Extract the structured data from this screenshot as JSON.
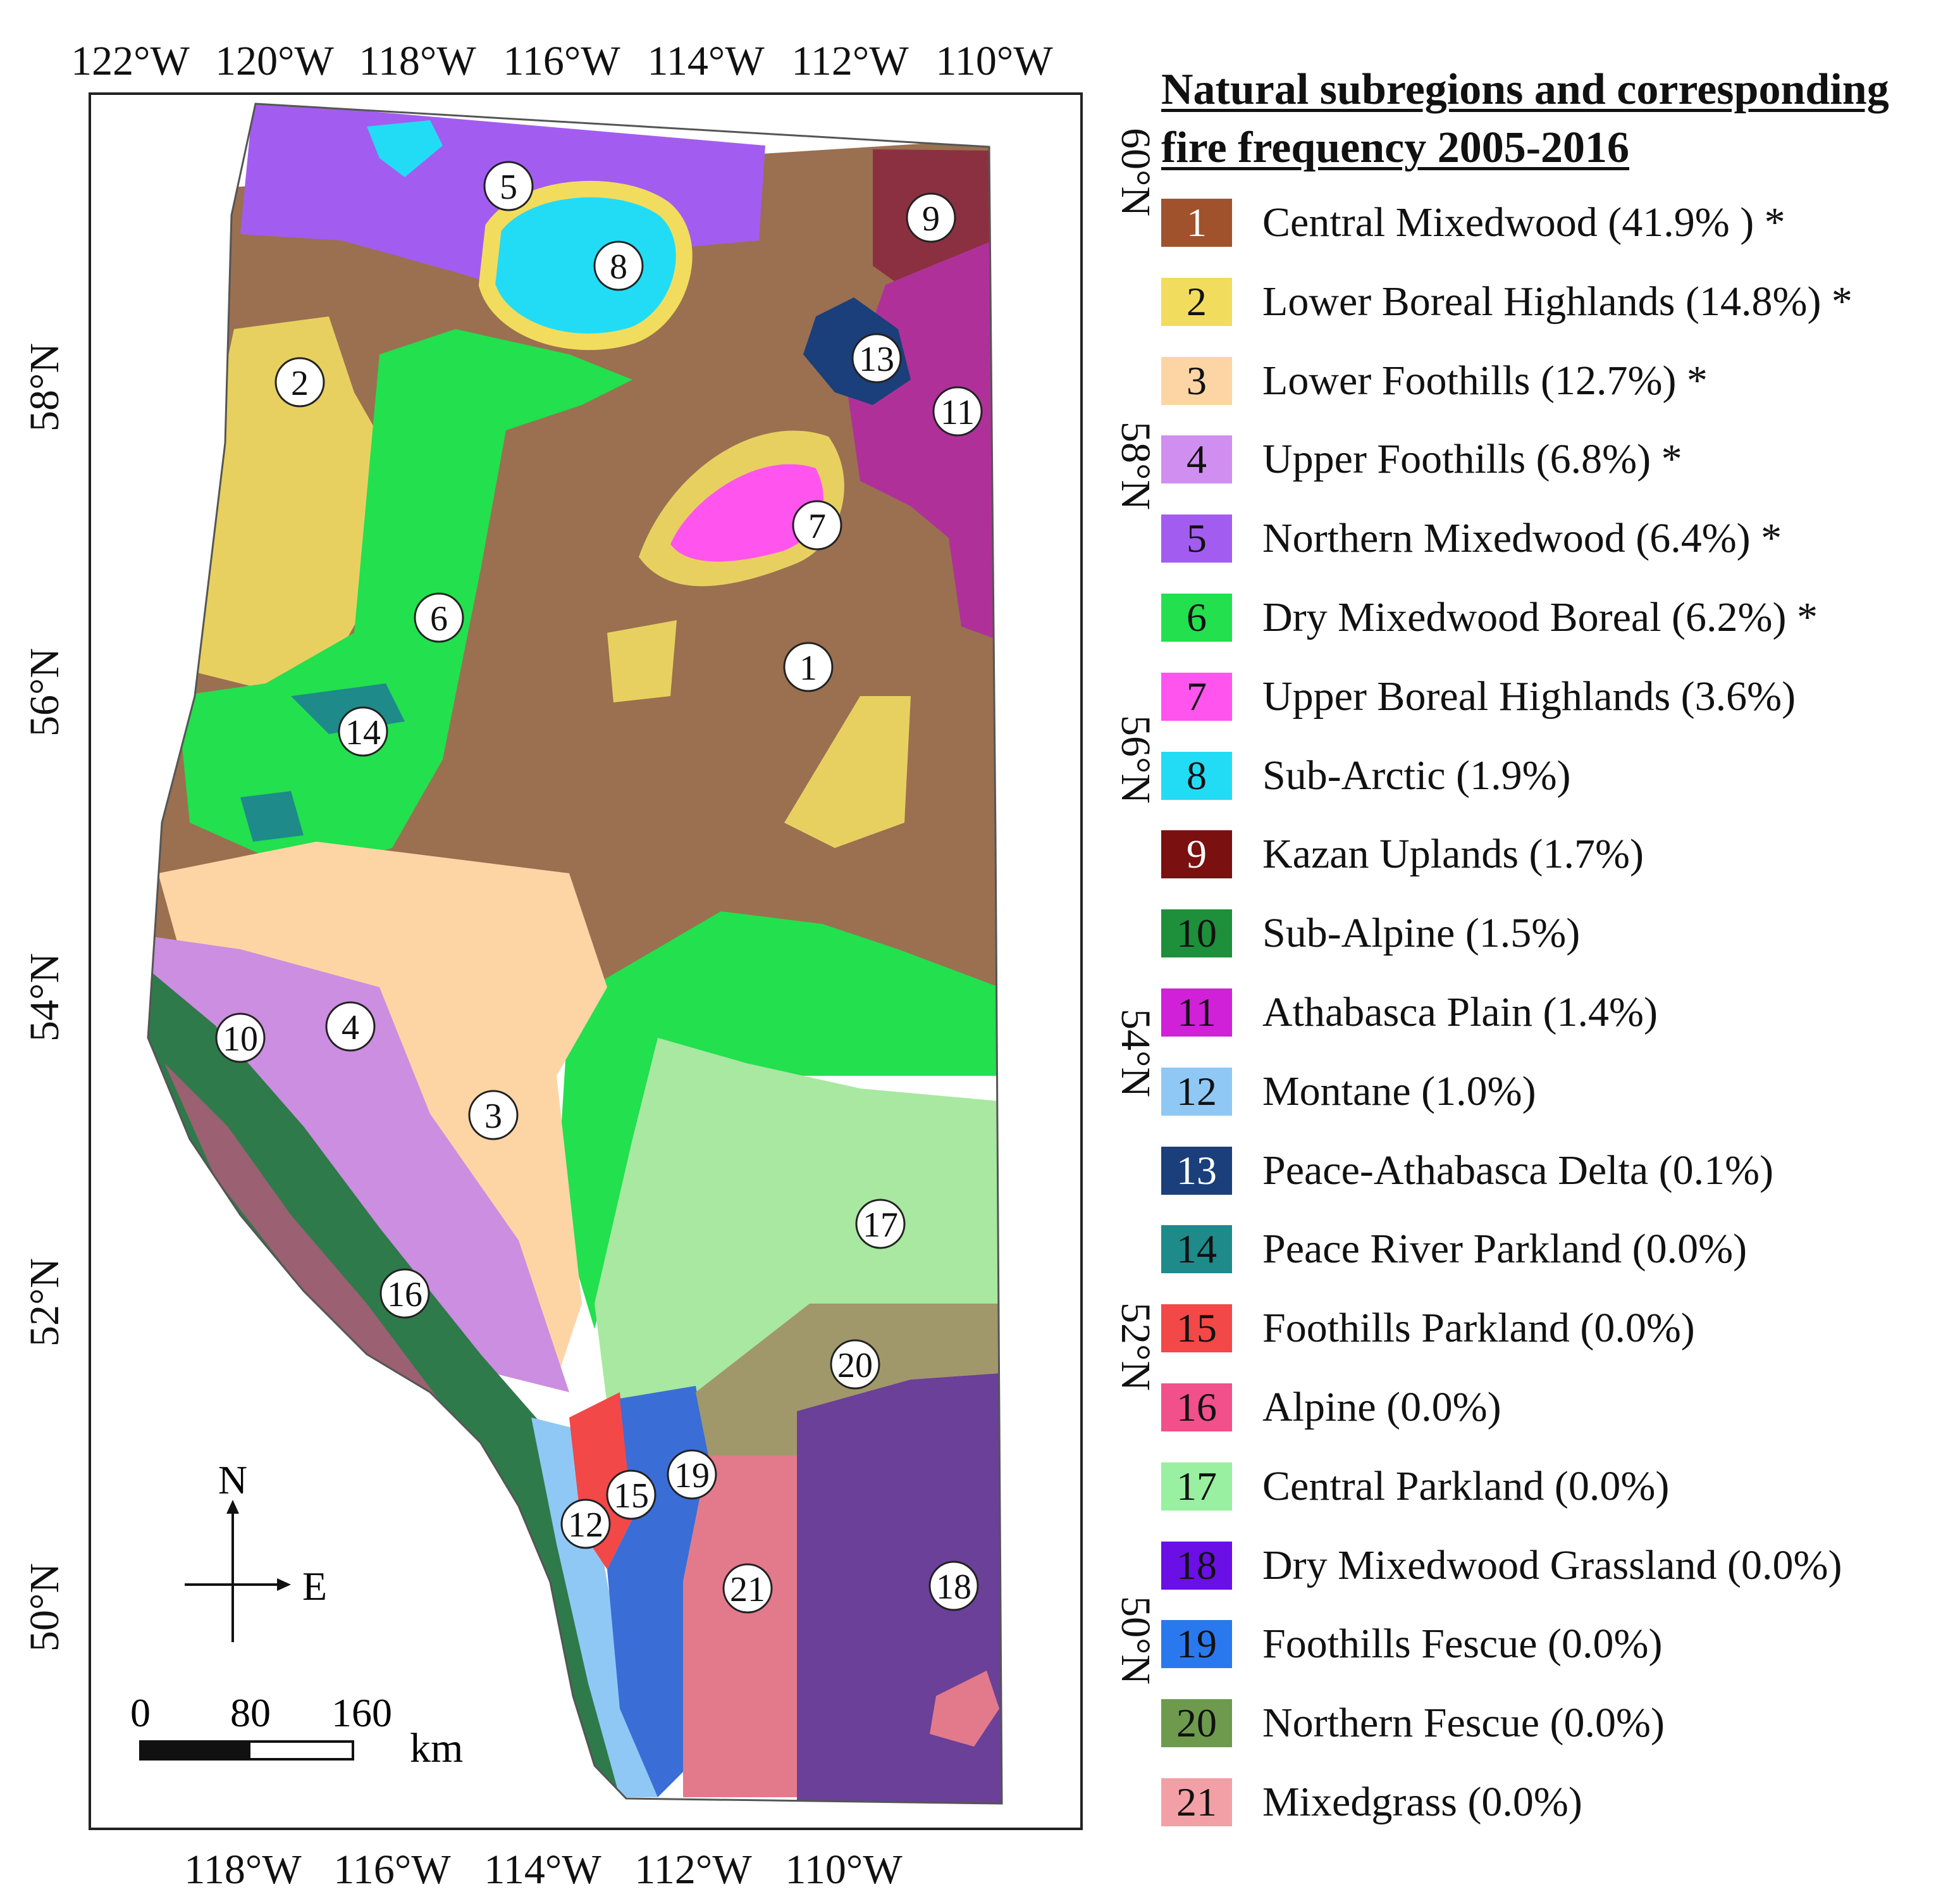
{
  "map": {
    "top_axis_labels": [
      "122°W",
      "120°W",
      "118°W",
      "116°W",
      "114°W",
      "112°W",
      "110°W"
    ],
    "bottom_axis_labels": [
      "118°W",
      "116°W",
      "114°W",
      "112°W",
      "110°W"
    ],
    "left_axis_labels": [
      "58°N",
      "56°N",
      "54°N",
      "52°N",
      "50°N"
    ],
    "right_axis_labels": [
      "60°N",
      "58°N",
      "56°N",
      "54°N",
      "52°N",
      "50°N"
    ],
    "region_markers": [
      "1",
      "2",
      "3",
      "4",
      "5",
      "6",
      "7",
      "8",
      "9",
      "10",
      "11",
      "12",
      "13",
      "14",
      "15",
      "16",
      "17",
      "18",
      "19",
      "20",
      "21"
    ],
    "compass": {
      "north_label": "N",
      "east_label": "E"
    },
    "scale_bar": {
      "ticks": [
        "0",
        "80",
        "160"
      ],
      "unit": "km"
    }
  },
  "legend": {
    "title_line1": "Natural subregions and corresponding",
    "title_line2": "fire frequency 2005-2016",
    "items": [
      {
        "num": "1",
        "label": "Central Mixedwood (41.9% ) *",
        "color": "#a0522d",
        "text_color": "#ffffff"
      },
      {
        "num": "2",
        "label": "Lower Boreal Highlands (14.8%) *",
        "color": "#f2dc5d",
        "text_color": "#111111"
      },
      {
        "num": "3",
        "label": "Lower Foothills (12.7%) *",
        "color": "#fdd5a5",
        "text_color": "#111111"
      },
      {
        "num": "4",
        "label": "Upper Foothills (6.8%) *",
        "color": "#d08ff0",
        "text_color": "#111111"
      },
      {
        "num": "5",
        "label": "Northern Mixedwood (6.4%) *",
        "color": "#a35cf0",
        "text_color": "#111111"
      },
      {
        "num": "6",
        "label": "Dry Mixedwood Boreal (6.2%) *",
        "color": "#22e04e",
        "text_color": "#111111"
      },
      {
        "num": "7",
        "label": "Upper Boreal Highlands (3.6%)",
        "color": "#ff55ee",
        "text_color": "#111111"
      },
      {
        "num": "8",
        "label": "Sub-Arctic (1.9%)",
        "color": "#22dcf5",
        "text_color": "#111111"
      },
      {
        "num": "9",
        "label": "Kazan Uplands (1.7%)",
        "color": "#7a1010",
        "text_color": "#ffffff"
      },
      {
        "num": "10",
        "label": "Sub-Alpine (1.5%)",
        "color": "#1e8f3a",
        "text_color": "#111111"
      },
      {
        "num": "11",
        "label": "Athabasca Plain (1.4%)",
        "color": "#d020d8",
        "text_color": "#111111"
      },
      {
        "num": "12",
        "label": "Montane (1.0%)",
        "color": "#8fc8f5",
        "text_color": "#111111"
      },
      {
        "num": "13",
        "label": "Peace-Athabasca Delta (0.1%)",
        "color": "#1a3f7a",
        "text_color": "#ffffff"
      },
      {
        "num": "14",
        "label": "Peace River Parkland (0.0%)",
        "color": "#1e8a8a",
        "text_color": "#111111"
      },
      {
        "num": "15",
        "label": "Foothills Parkland (0.0%)",
        "color": "#f24848",
        "text_color": "#111111"
      },
      {
        "num": "16",
        "label": "Alpine (0.0%)",
        "color": "#f2508a",
        "text_color": "#111111"
      },
      {
        "num": "17",
        "label": "Central Parkland (0.0%)",
        "color": "#98f0a0",
        "text_color": "#111111"
      },
      {
        "num": "18",
        "label": "Dry Mixedwood Grassland (0.0%)",
        "color": "#6a0fe6",
        "text_color": "#111111"
      },
      {
        "num": "19",
        "label": "Foothills Fescue (0.0%)",
        "color": "#2a78ee",
        "text_color": "#111111"
      },
      {
        "num": "20",
        "label": "Northern Fescue (0.0%)",
        "color": "#6e9a4e",
        "text_color": "#111111"
      },
      {
        "num": "21",
        "label": "Mixedgrass (0.0%)",
        "color": "#f2a0a6",
        "text_color": "#111111"
      }
    ]
  }
}
